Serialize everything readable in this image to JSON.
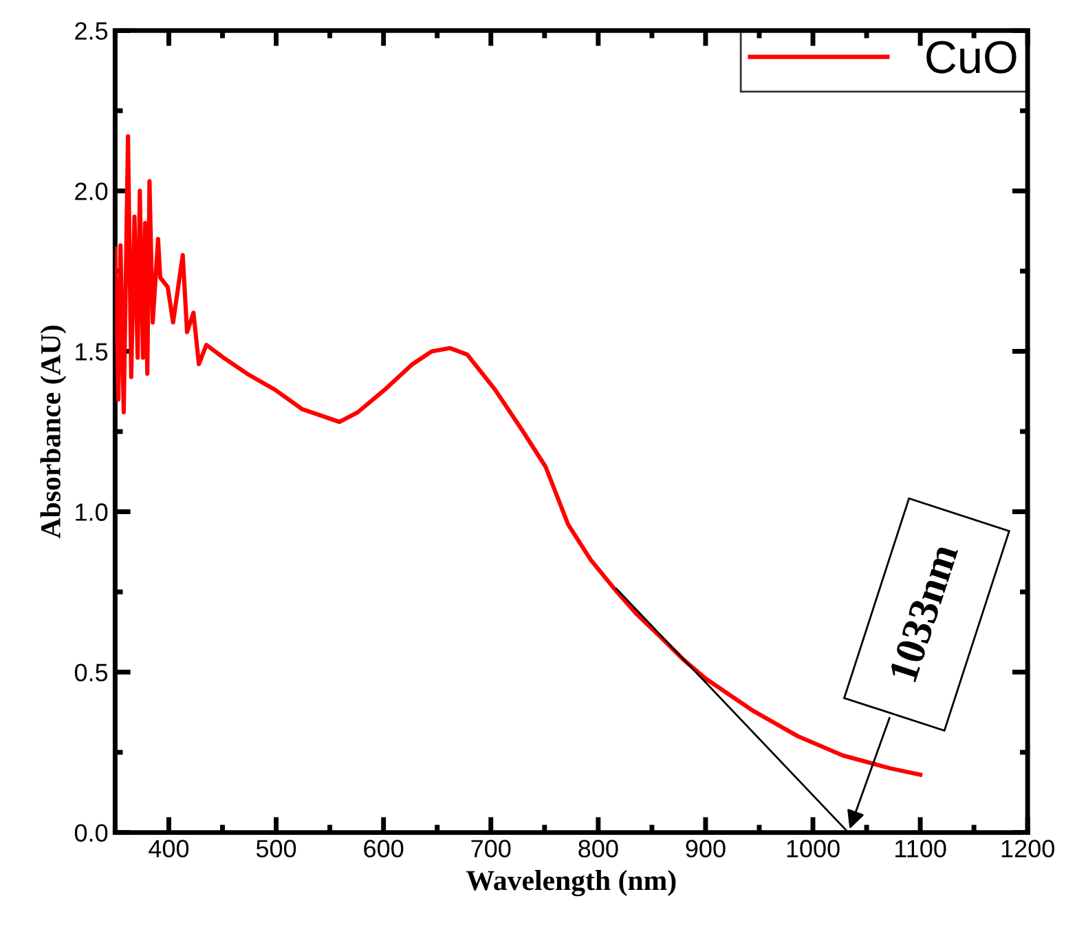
{
  "chart_data": {
    "type": "line",
    "xlabel": "Wavelength (nm)",
    "ylabel": "Absorbance (AU)",
    "xlim": [
      350,
      1200
    ],
    "xticks": [
      400,
      500,
      600,
      700,
      800,
      900,
      1000,
      1100,
      1200
    ],
    "ylim": [
      0,
      2.5
    ],
    "yticks": [
      {
        "value": 0,
        "label": "0.0"
      },
      0.5,
      {
        "value": 1,
        "label": "1.0"
      },
      1.5,
      {
        "value": 2,
        "label": "2.0"
      },
      2.5
    ],
    "legend": "top right",
    "grid": false,
    "series": [
      {
        "name": "CuO",
        "color": "#ff0000",
        "x": [
          350,
          353,
          355,
          358,
          362,
          365,
          368,
          371,
          373,
          376,
          378,
          380,
          382,
          385,
          390,
          392,
          399,
          404,
          413,
          417,
          423,
          428,
          435,
          451,
          473,
          499,
          524,
          559,
          576,
          601,
          627,
          645,
          662,
          678,
          704,
          730,
          751,
          772,
          793,
          815,
          836,
          858,
          879,
          900,
          922,
          944,
          965,
          986,
          1007,
          1028,
          1050,
          1072,
          1100
        ],
        "values": [
          1.82,
          1.35,
          1.83,
          1.31,
          2.17,
          1.42,
          1.92,
          1.48,
          2.0,
          1.48,
          1.9,
          1.43,
          2.03,
          1.59,
          1.85,
          1.73,
          1.7,
          1.59,
          1.8,
          1.56,
          1.62,
          1.46,
          1.52,
          1.48,
          1.43,
          1.38,
          1.32,
          1.28,
          1.31,
          1.38,
          1.46,
          1.5,
          1.51,
          1.49,
          1.38,
          1.25,
          1.14,
          0.96,
          0.85,
          0.76,
          0.68,
          0.61,
          0.54,
          0.48,
          0.43,
          0.38,
          0.34,
          0.3,
          0.27,
          0.24,
          0.22,
          0.2,
          0.18
        ]
      },
      {
        "type": "line",
        "color": "#000000",
        "x": [
          817,
          1033
        ],
        "values": [
          0.76,
          0
        ]
      }
    ],
    "annotations": [
      {
        "text": "1033nm",
        "x": 1033,
        "y": 0
      }
    ]
  }
}
